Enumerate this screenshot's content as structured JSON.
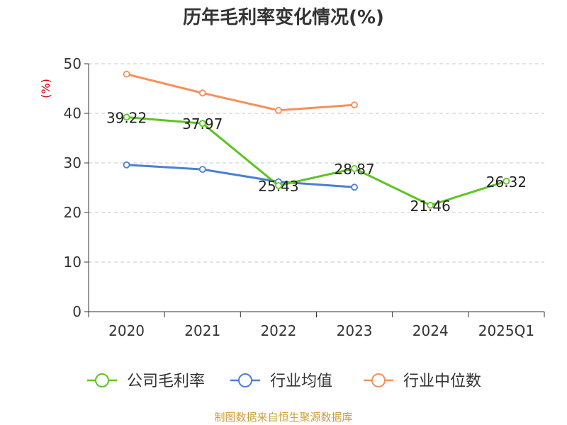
{
  "chart_data": {
    "type": "line",
    "title": "历年毛利率变化情况(%)",
    "ylabel": "(%)",
    "xlabel": "",
    "categories": [
      "2020",
      "2021",
      "2022",
      "2023",
      "2024",
      "2025Q1"
    ],
    "ylim": [
      0,
      50
    ],
    "yticks": [
      0,
      10,
      20,
      30,
      40,
      50
    ],
    "grid": true,
    "legend_position": "bottom",
    "series": [
      {
        "name": "公司毛利率",
        "color": "#5cc423",
        "values": [
          39.22,
          37.97,
          25.43,
          28.87,
          21.46,
          26.32
        ],
        "labels": [
          "39.22",
          "37.97",
          "25.43",
          "28.87",
          "21.46",
          "26.32"
        ]
      },
      {
        "name": "行业均值",
        "color": "#4a7fd6",
        "values": [
          29.6,
          28.7,
          26.2,
          25.1,
          null,
          null
        ]
      },
      {
        "name": "行业中位数",
        "color": "#f5905a",
        "values": [
          47.9,
          44.1,
          40.6,
          41.7,
          null,
          null
        ]
      }
    ]
  },
  "source": "制图数据来自恒生聚源数据库"
}
